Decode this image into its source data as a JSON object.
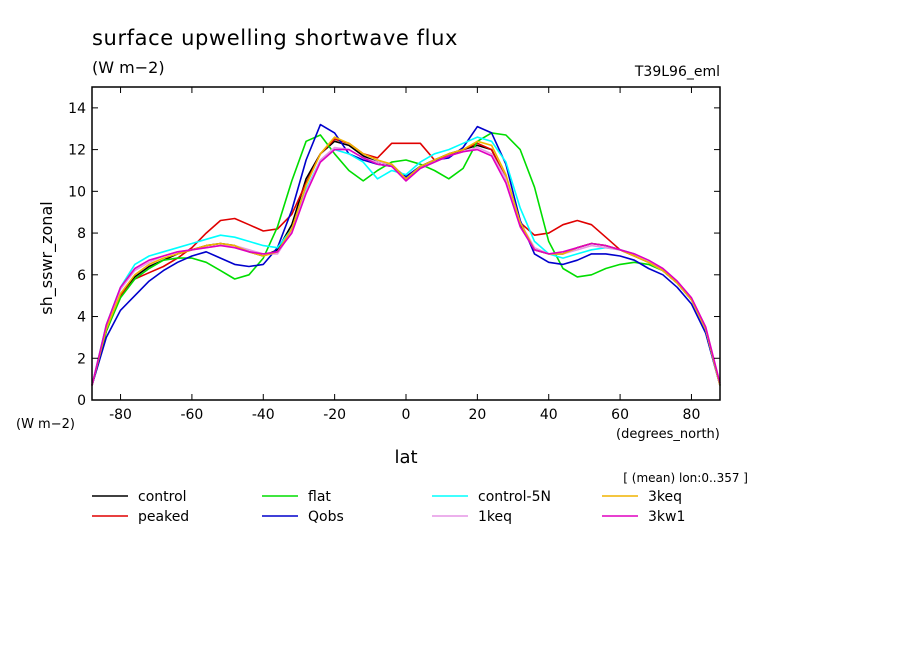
{
  "chart_data": {
    "type": "line",
    "title": "surface upwelling shortwave flux",
    "units_label": "(W m−2)",
    "run_label": "T39L96_eml",
    "ylabel": "sh_sswr_zonal",
    "yunits_label": "(W m−2)",
    "xlabel": "lat",
    "xunits_label": "(degrees_north)",
    "mean_note": "[ (mean) lon:0..357 ]",
    "xlim": [
      -88,
      88
    ],
    "ylim": [
      0,
      15
    ],
    "xticks": [
      -80,
      -60,
      -40,
      -20,
      0,
      20,
      40,
      60,
      80
    ],
    "yticks": [
      0,
      2,
      4,
      6,
      8,
      10,
      12,
      14
    ],
    "x": [
      -88,
      -84,
      -80,
      -76,
      -72,
      -68,
      -64,
      -60,
      -56,
      -52,
      -48,
      -44,
      -40,
      -36,
      -32,
      -28,
      -24,
      -20,
      -16,
      -12,
      -8,
      -4,
      0,
      4,
      8,
      12,
      16,
      20,
      24,
      28,
      32,
      36,
      40,
      44,
      48,
      52,
      56,
      60,
      64,
      68,
      72,
      76,
      80,
      84,
      88
    ],
    "series": [
      {
        "name": "control",
        "color": "#000000",
        "values": [
          0.7,
          3.3,
          5.0,
          5.9,
          6.4,
          6.7,
          7.0,
          7.2,
          7.4,
          7.5,
          7.4,
          7.1,
          6.9,
          7.2,
          8.4,
          10.6,
          11.8,
          12.4,
          12.2,
          11.7,
          11.4,
          11.3,
          10.6,
          11.2,
          11.5,
          11.8,
          12.0,
          12.2,
          12.0,
          10.6,
          8.4,
          7.2,
          7.0,
          7.0,
          7.3,
          7.5,
          7.4,
          7.2,
          6.9,
          6.6,
          6.2,
          5.6,
          4.8,
          3.4,
          0.7
        ]
      },
      {
        "name": "peaked",
        "color": "#e00000",
        "values": [
          0.7,
          3.3,
          5.0,
          5.8,
          6.1,
          6.4,
          6.8,
          7.3,
          8.0,
          8.6,
          8.7,
          8.4,
          8.1,
          8.2,
          8.9,
          10.4,
          11.8,
          12.5,
          12.3,
          11.8,
          11.6,
          12.3,
          12.3,
          12.3,
          11.5,
          11.7,
          12.0,
          12.3,
          12.0,
          10.6,
          8.5,
          7.9,
          8.0,
          8.4,
          8.6,
          8.4,
          7.8,
          7.2,
          6.9,
          6.6,
          6.2,
          5.6,
          4.8,
          3.4,
          0.7
        ]
      },
      {
        "name": "flat",
        "color": "#00dd00",
        "values": [
          0.7,
          3.3,
          4.9,
          5.8,
          6.3,
          6.7,
          6.8,
          6.8,
          6.6,
          6.2,
          5.8,
          6.0,
          6.8,
          8.3,
          10.5,
          12.4,
          12.7,
          11.8,
          11.0,
          10.5,
          11.0,
          11.4,
          11.5,
          11.3,
          11.0,
          10.6,
          11.1,
          12.4,
          12.8,
          12.7,
          12.0,
          10.2,
          7.6,
          6.3,
          5.9,
          6.0,
          6.3,
          6.5,
          6.6,
          6.5,
          6.2,
          5.6,
          4.8,
          3.4,
          0.7
        ]
      },
      {
        "name": "Qobs",
        "color": "#0000cc",
        "values": [
          0.7,
          3.0,
          4.3,
          5.0,
          5.7,
          6.2,
          6.6,
          6.9,
          7.1,
          6.8,
          6.5,
          6.4,
          6.5,
          7.3,
          9.1,
          11.5,
          13.2,
          12.8,
          11.8,
          11.5,
          11.3,
          11.2,
          10.7,
          11.2,
          11.5,
          11.6,
          12.1,
          13.1,
          12.8,
          11.3,
          8.6,
          7.0,
          6.6,
          6.5,
          6.7,
          7.0,
          7.0,
          6.9,
          6.7,
          6.3,
          6.0,
          5.4,
          4.6,
          3.2,
          0.7
        ]
      },
      {
        "name": "control-5N",
        "color": "#00ffff",
        "values": [
          0.7,
          3.6,
          5.4,
          6.5,
          6.9,
          7.1,
          7.3,
          7.5,
          7.7,
          7.9,
          7.8,
          7.6,
          7.4,
          7.3,
          8.2,
          10.1,
          11.5,
          12.0,
          11.8,
          11.4,
          10.6,
          11.0,
          10.8,
          11.4,
          11.8,
          12.0,
          12.3,
          12.6,
          12.4,
          11.4,
          9.2,
          7.6,
          7.0,
          6.8,
          7.0,
          7.2,
          7.3,
          7.2,
          7.0,
          6.6,
          6.2,
          5.6,
          4.8,
          3.4,
          0.7
        ]
      },
      {
        "name": "1keq",
        "color": "#e696e6",
        "values": [
          0.7,
          3.5,
          5.3,
          6.2,
          6.6,
          6.9,
          7.1,
          7.2,
          7.3,
          7.4,
          7.4,
          7.2,
          7.0,
          7.0,
          8.1,
          10.0,
          11.5,
          12.1,
          12.0,
          11.6,
          11.4,
          11.3,
          10.5,
          11.1,
          11.4,
          11.7,
          11.9,
          12.1,
          11.8,
          10.6,
          8.5,
          7.3,
          7.0,
          7.0,
          7.2,
          7.4,
          7.3,
          7.2,
          7.0,
          6.6,
          6.2,
          5.6,
          4.8,
          3.4,
          0.7
        ]
      },
      {
        "name": "3keq",
        "color": "#f0b400",
        "values": [
          0.7,
          3.4,
          5.1,
          6.0,
          6.5,
          6.8,
          7.0,
          7.2,
          7.4,
          7.5,
          7.4,
          7.1,
          6.9,
          7.1,
          8.2,
          10.3,
          11.8,
          12.6,
          12.3,
          11.8,
          11.5,
          11.3,
          10.6,
          11.2,
          11.5,
          11.8,
          12.0,
          12.4,
          12.2,
          10.8,
          8.5,
          7.2,
          7.0,
          7.0,
          7.3,
          7.5,
          7.4,
          7.2,
          6.9,
          6.6,
          6.2,
          5.6,
          4.8,
          3.4,
          0.7
        ]
      },
      {
        "name": "3kw1",
        "color": "#e000c0",
        "values": [
          0.7,
          3.6,
          5.4,
          6.3,
          6.7,
          6.9,
          7.1,
          7.2,
          7.3,
          7.4,
          7.3,
          7.1,
          7.0,
          7.1,
          8.0,
          9.9,
          11.4,
          12.0,
          12.0,
          11.6,
          11.3,
          11.2,
          10.5,
          11.1,
          11.4,
          11.7,
          11.9,
          12.0,
          11.7,
          10.4,
          8.3,
          7.2,
          7.0,
          7.1,
          7.3,
          7.5,
          7.4,
          7.2,
          7.0,
          6.7,
          6.3,
          5.7,
          4.9,
          3.5,
          0.8
        ]
      }
    ]
  }
}
